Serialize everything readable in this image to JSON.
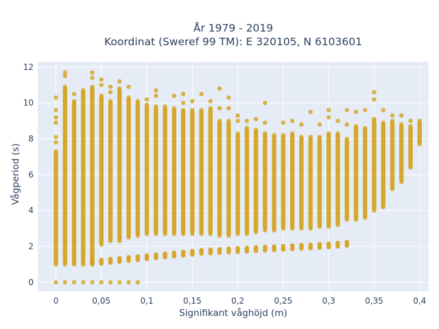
{
  "chart_data": {
    "type": "scatter",
    "title": "År 1979 - 2019",
    "subtitle": "Koordinat (Sweref 99 TM): E 320105, N 6103601",
    "xlabel": "Signifikant våghöjd (m)",
    "ylabel": "Vågperiod (s)",
    "xlim": [
      -0.02,
      0.41
    ],
    "ylim": [
      -0.5,
      12.3
    ],
    "x_ticks": [
      0,
      0.05,
      0.1,
      0.15,
      0.2,
      0.25,
      0.3,
      0.35,
      0.4
    ],
    "x_tick_labels": [
      "0",
      "0,05",
      "0,1",
      "0,15",
      "0,2",
      "0,25",
      "0,3",
      "0,35",
      "0,4"
    ],
    "y_ticks": [
      0,
      2,
      4,
      6,
      8,
      10,
      12
    ],
    "y_tick_labels": [
      "0",
      "2",
      "4",
      "6",
      "8",
      "10",
      "12"
    ],
    "grid": true,
    "background": "#e5ecf6",
    "point_color": "#d4a017",
    "columns": [
      {
        "x": 0.0,
        "lower": 1.0,
        "upper": 7.3,
        "zero_band": true,
        "extra": [
          7.8,
          8.1,
          8.9,
          9.2,
          9.6,
          10.3
        ]
      },
      {
        "x": 0.01,
        "lower": 1.0,
        "upper": 10.9,
        "zero_band": true,
        "extra": [
          11.5,
          11.7
        ]
      },
      {
        "x": 0.02,
        "lower": 1.0,
        "upper": 10.1,
        "zero_band": true,
        "extra": [
          10.5
        ]
      },
      {
        "x": 0.03,
        "lower": 1.0,
        "upper": 10.7,
        "zero_band": true,
        "extra": []
      },
      {
        "x": 0.04,
        "lower": 1.1,
        "upper": 10.9,
        "zero_band": true,
        "extra": [
          11.4,
          11.7
        ]
      },
      {
        "x": 0.05,
        "lower": 2.1,
        "upper": 10.4,
        "zero_band": true,
        "extra": [
          11.0,
          11.3
        ]
      },
      {
        "x": 0.06,
        "lower": 2.3,
        "upper": 10.1,
        "zero_band": true,
        "extra": [
          10.6,
          10.9
        ]
      },
      {
        "x": 0.07,
        "lower": 2.3,
        "upper": 10.8,
        "zero_band": true,
        "extra": [
          11.2
        ]
      },
      {
        "x": 0.08,
        "lower": 2.5,
        "upper": 10.3,
        "zero_band": true,
        "extra": [
          10.9
        ]
      },
      {
        "x": 0.09,
        "lower": 2.6,
        "upper": 10.1,
        "zero_band": true,
        "extra": []
      },
      {
        "x": 0.1,
        "lower": 2.7,
        "upper": 9.9,
        "zero_band": false,
        "extra": [
          10.2
        ]
      },
      {
        "x": 0.11,
        "lower": 2.7,
        "upper": 9.8,
        "zero_band": false,
        "extra": [
          10.4,
          10.7
        ]
      },
      {
        "x": 0.12,
        "lower": 2.7,
        "upper": 9.8,
        "zero_band": false,
        "extra": []
      },
      {
        "x": 0.13,
        "lower": 2.7,
        "upper": 9.7,
        "zero_band": false,
        "extra": [
          10.4
        ]
      },
      {
        "x": 0.14,
        "lower": 2.7,
        "upper": 9.6,
        "zero_band": false,
        "extra": [
          10.0,
          10.5
        ]
      },
      {
        "x": 0.15,
        "lower": 2.7,
        "upper": 9.6,
        "zero_band": false,
        "extra": [
          10.1
        ]
      },
      {
        "x": 0.16,
        "lower": 2.7,
        "upper": 9.6,
        "zero_band": false,
        "extra": [
          10.5
        ]
      },
      {
        "x": 0.17,
        "lower": 2.7,
        "upper": 9.7,
        "zero_band": false,
        "extra": [
          10.1
        ]
      },
      {
        "x": 0.18,
        "lower": 2.6,
        "upper": 9.0,
        "zero_band": false,
        "extra": [
          9.7,
          10.8
        ]
      },
      {
        "x": 0.19,
        "lower": 2.6,
        "upper": 9.0,
        "zero_band": false,
        "extra": [
          9.7,
          10.3
        ]
      },
      {
        "x": 0.2,
        "lower": 2.7,
        "upper": 8.3,
        "zero_band": false,
        "extra": [
          9.0,
          9.3
        ]
      },
      {
        "x": 0.21,
        "lower": 2.7,
        "upper": 8.6,
        "zero_band": false,
        "extra": [
          9.0
        ]
      },
      {
        "x": 0.22,
        "lower": 2.8,
        "upper": 8.5,
        "zero_band": false,
        "extra": [
          9.1
        ]
      },
      {
        "x": 0.23,
        "lower": 2.9,
        "upper": 8.3,
        "zero_band": false,
        "extra": [
          8.9,
          10.0
        ]
      },
      {
        "x": 0.24,
        "lower": 2.9,
        "upper": 8.2,
        "zero_band": false,
        "extra": []
      },
      {
        "x": 0.25,
        "lower": 3.0,
        "upper": 8.2,
        "zero_band": false,
        "extra": [
          8.9
        ]
      },
      {
        "x": 0.26,
        "lower": 3.0,
        "upper": 8.3,
        "zero_band": false,
        "extra": [
          9.0
        ]
      },
      {
        "x": 0.27,
        "lower": 3.0,
        "upper": 8.1,
        "zero_band": false,
        "extra": [
          8.8
        ]
      },
      {
        "x": 0.28,
        "lower": 3.0,
        "upper": 8.1,
        "zero_band": false,
        "extra": [
          9.5
        ]
      },
      {
        "x": 0.29,
        "lower": 3.1,
        "upper": 8.1,
        "zero_band": false,
        "extra": [
          8.8
        ]
      },
      {
        "x": 0.3,
        "lower": 3.1,
        "upper": 8.3,
        "zero_band": false,
        "extra": [
          9.2,
          9.6
        ]
      },
      {
        "x": 0.31,
        "lower": 3.2,
        "upper": 8.3,
        "zero_band": false,
        "extra": [
          9.0
        ]
      },
      {
        "x": 0.32,
        "lower": 3.5,
        "upper": 8.0,
        "zero_band": false,
        "extra": [
          8.8,
          9.6
        ]
      },
      {
        "x": 0.33,
        "lower": 3.5,
        "upper": 8.7,
        "zero_band": false,
        "extra": [
          9.5
        ]
      },
      {
        "x": 0.34,
        "lower": 3.6,
        "upper": 8.6,
        "zero_band": false,
        "extra": [
          9.6
        ]
      },
      {
        "x": 0.35,
        "lower": 4.0,
        "upper": 9.1,
        "zero_band": false,
        "extra": [
          10.2,
          10.6
        ]
      },
      {
        "x": 0.36,
        "lower": 4.2,
        "upper": 8.9,
        "zero_band": false,
        "extra": [
          9.6
        ]
      },
      {
        "x": 0.37,
        "lower": 5.2,
        "upper": 9.0,
        "zero_band": false,
        "extra": [
          9.3
        ]
      },
      {
        "x": 0.38,
        "lower": 5.6,
        "upper": 8.8,
        "zero_band": false,
        "extra": [
          9.3
        ]
      },
      {
        "x": 0.39,
        "lower": 6.4,
        "upper": 8.7,
        "zero_band": false,
        "extra": [
          9.0
        ]
      },
      {
        "x": 0.4,
        "lower": 7.7,
        "upper": 9.0,
        "zero_band": false,
        "extra": []
      }
    ],
    "lower_band": [
      {
        "x": 0.04,
        "y": 1.1
      },
      {
        "x": 0.05,
        "y": 1.15
      },
      {
        "x": 0.06,
        "y": 1.2
      },
      {
        "x": 0.07,
        "y": 1.25
      },
      {
        "x": 0.08,
        "y": 1.3
      },
      {
        "x": 0.09,
        "y": 1.35
      },
      {
        "x": 0.1,
        "y": 1.4
      },
      {
        "x": 0.11,
        "y": 1.45
      },
      {
        "x": 0.12,
        "y": 1.5
      },
      {
        "x": 0.13,
        "y": 1.55
      },
      {
        "x": 0.14,
        "y": 1.6
      },
      {
        "x": 0.15,
        "y": 1.65
      },
      {
        "x": 0.16,
        "y": 1.7
      },
      {
        "x": 0.17,
        "y": 1.72
      },
      {
        "x": 0.18,
        "y": 1.75
      },
      {
        "x": 0.19,
        "y": 1.78
      },
      {
        "x": 0.2,
        "y": 1.8
      },
      {
        "x": 0.21,
        "y": 1.82
      },
      {
        "x": 0.22,
        "y": 1.85
      },
      {
        "x": 0.23,
        "y": 1.88
      },
      {
        "x": 0.24,
        "y": 1.9
      },
      {
        "x": 0.25,
        "y": 1.92
      },
      {
        "x": 0.26,
        "y": 1.95
      },
      {
        "x": 0.27,
        "y": 1.98
      },
      {
        "x": 0.28,
        "y": 2.0
      },
      {
        "x": 0.29,
        "y": 2.03
      },
      {
        "x": 0.3,
        "y": 2.06
      },
      {
        "x": 0.31,
        "y": 2.1
      },
      {
        "x": 0.32,
        "y": 2.15
      }
    ]
  }
}
